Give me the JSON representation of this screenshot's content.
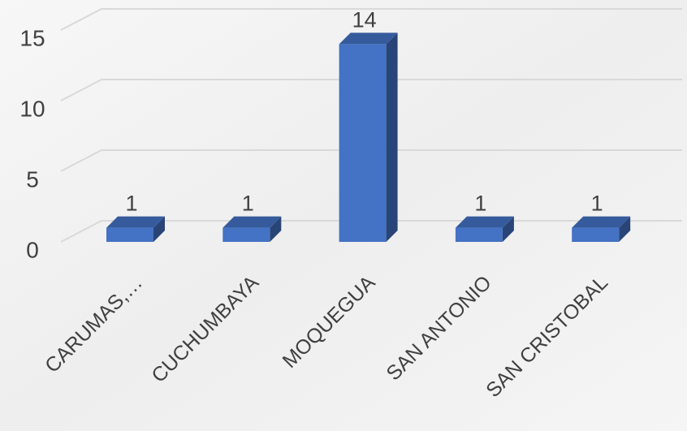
{
  "chart_data": {
    "type": "bar3d",
    "categories": [
      "CARUMAS,…",
      "CUCHUMBAYA",
      "MOQUEGUA",
      "SAN ANTONIO",
      "SAN CRISTOBAL"
    ],
    "values": [
      1,
      1,
      14,
      1,
      1
    ],
    "color": "#4472c4",
    "ylim": [
      0,
      15
    ],
    "yticks": [
      0,
      5,
      10,
      15
    ],
    "grid": true
  }
}
